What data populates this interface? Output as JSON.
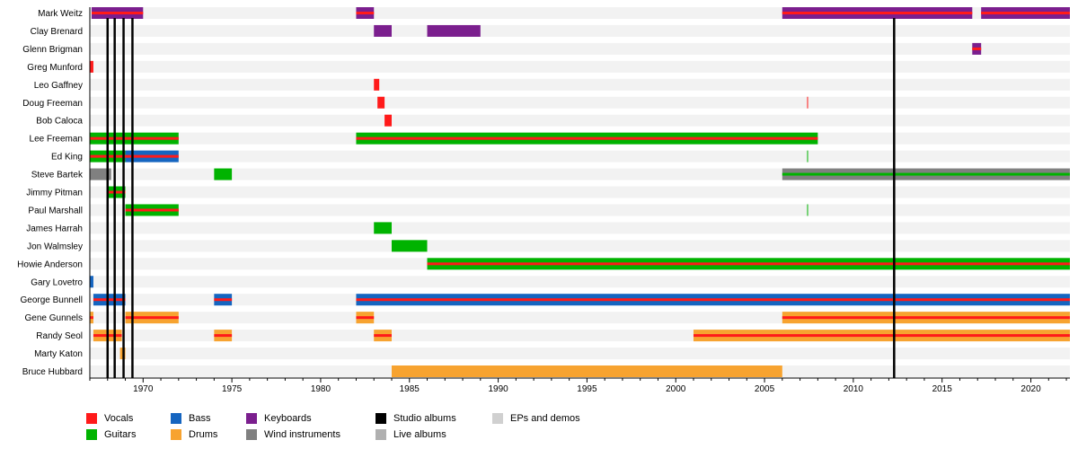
{
  "chart_data": {
    "type": "timeline",
    "title": "",
    "xlabel": "",
    "ylabel": "",
    "xlim": [
      1967.0,
      2022.2
    ],
    "x_ticks": [
      1970,
      1975,
      1980,
      1985,
      1990,
      1995,
      2000,
      2005,
      2010,
      2015,
      2020
    ],
    "colors": {
      "Vocals": "#ff1a1a",
      "Guitars": "#00b300",
      "Bass": "#1565c0",
      "Keyboards": "#7b1f8e",
      "Drums": "#f7a330",
      "Wind instruments": "#808080",
      "Studio albums": "#000000",
      "Live albums": "#b0b0b0",
      "EPs and demos": "#d0d0d0"
    },
    "legend": [
      {
        "label": "Vocals",
        "role": "Vocals"
      },
      {
        "label": "Guitars",
        "role": "Guitars"
      },
      {
        "label": "Bass",
        "role": "Bass"
      },
      {
        "label": "Drums",
        "role": "Drums"
      },
      {
        "label": "Keyboards",
        "role": "Keyboards"
      },
      {
        "label": "Wind instruments",
        "role": "Wind instruments"
      },
      {
        "label": "Studio albums",
        "role": "Studio albums"
      },
      {
        "label": "Live albums",
        "role": "Live albums"
      },
      {
        "label": "EPs and demos",
        "role": "EPs and demos"
      }
    ],
    "members": [
      {
        "name": "Mark Weitz",
        "periods": [
          {
            "start": 1967.1,
            "end": 1970.0,
            "roles": [
              "Keyboards",
              "Vocals"
            ]
          },
          {
            "start": 1982.0,
            "end": 1983.0,
            "roles": [
              "Keyboards",
              "Vocals"
            ]
          },
          {
            "start": 2006.0,
            "end": 2016.7,
            "roles": [
              "Keyboards",
              "Vocals"
            ]
          },
          {
            "start": 2017.2,
            "end": 2022.2,
            "roles": [
              "Keyboards",
              "Vocals"
            ]
          }
        ]
      },
      {
        "name": "Clay Brenard",
        "periods": [
          {
            "start": 1983.0,
            "end": 1984.0,
            "roles": [
              "Keyboards"
            ]
          },
          {
            "start": 1986.0,
            "end": 1989.0,
            "roles": [
              "Keyboards"
            ]
          }
        ]
      },
      {
        "name": "Glenn Brigman",
        "periods": [
          {
            "start": 2016.7,
            "end": 2017.2,
            "roles": [
              "Keyboards",
              "Vocals"
            ]
          }
        ]
      },
      {
        "name": "Greg Munford",
        "periods": [
          {
            "start": 1967.0,
            "end": 1967.2,
            "roles": [
              "Vocals"
            ]
          }
        ]
      },
      {
        "name": "Leo Gaffney",
        "periods": [
          {
            "start": 1983.0,
            "end": 1983.3,
            "roles": [
              "Vocals"
            ]
          }
        ]
      },
      {
        "name": "Doug Freeman",
        "periods": [
          {
            "start": 1983.2,
            "end": 1983.6,
            "roles": [
              "Vocals"
            ]
          },
          {
            "start": 2007.4,
            "end": 2007.45,
            "roles": [
              "Vocals"
            ]
          }
        ]
      },
      {
        "name": "Bob Caloca",
        "periods": [
          {
            "start": 1983.6,
            "end": 1984.0,
            "roles": [
              "Vocals"
            ]
          }
        ]
      },
      {
        "name": "Lee Freeman",
        "periods": [
          {
            "start": 1967.0,
            "end": 1972.0,
            "roles": [
              "Guitars",
              "Vocals"
            ]
          },
          {
            "start": 1982.0,
            "end": 2008.0,
            "roles": [
              "Guitars",
              "Vocals"
            ]
          }
        ]
      },
      {
        "name": "Ed King",
        "periods": [
          {
            "start": 1967.0,
            "end": 1969.0,
            "roles": [
              "Guitars",
              "Vocals"
            ]
          },
          {
            "start": 1969.0,
            "end": 1972.0,
            "roles": [
              "Bass",
              "Vocals"
            ]
          },
          {
            "start": 2007.4,
            "end": 2007.45,
            "roles": [
              "Guitars"
            ]
          }
        ]
      },
      {
        "name": "Steve Bartek",
        "periods": [
          {
            "start": 1967.0,
            "end": 1968.2,
            "roles": [
              "Wind instruments"
            ]
          },
          {
            "start": 1974.0,
            "end": 1975.0,
            "roles": [
              "Guitars"
            ]
          },
          {
            "start": 2006.0,
            "end": 2022.2,
            "roles": [
              "Wind instruments",
              "Guitars"
            ]
          }
        ]
      },
      {
        "name": "Jimmy Pitman",
        "periods": [
          {
            "start": 1968.0,
            "end": 1969.0,
            "roles": [
              "Guitars",
              "Vocals"
            ]
          }
        ]
      },
      {
        "name": "Paul Marshall",
        "periods": [
          {
            "start": 1969.0,
            "end": 1972.0,
            "roles": [
              "Guitars",
              "Vocals"
            ]
          },
          {
            "start": 2007.4,
            "end": 2007.45,
            "roles": [
              "Guitars"
            ]
          }
        ]
      },
      {
        "name": "James Harrah",
        "periods": [
          {
            "start": 1983.0,
            "end": 1984.0,
            "roles": [
              "Guitars"
            ]
          }
        ]
      },
      {
        "name": "Jon Walmsley",
        "periods": [
          {
            "start": 1984.0,
            "end": 1986.0,
            "roles": [
              "Guitars"
            ]
          }
        ]
      },
      {
        "name": "Howie Anderson",
        "periods": [
          {
            "start": 1986.0,
            "end": 2022.2,
            "roles": [
              "Guitars",
              "Vocals"
            ]
          }
        ]
      },
      {
        "name": "Gary Lovetro",
        "periods": [
          {
            "start": 1967.0,
            "end": 1967.2,
            "roles": [
              "Bass"
            ]
          }
        ]
      },
      {
        "name": "George Bunnell",
        "periods": [
          {
            "start": 1967.2,
            "end": 1969.0,
            "roles": [
              "Bass",
              "Vocals"
            ]
          },
          {
            "start": 1974.0,
            "end": 1975.0,
            "roles": [
              "Bass",
              "Vocals"
            ]
          },
          {
            "start": 1982.0,
            "end": 2022.2,
            "roles": [
              "Bass",
              "Vocals"
            ]
          }
        ]
      },
      {
        "name": "Gene Gunnels",
        "periods": [
          {
            "start": 1967.0,
            "end": 1967.2,
            "roles": [
              "Drums",
              "Vocals"
            ]
          },
          {
            "start": 1969.0,
            "end": 1972.0,
            "roles": [
              "Drums",
              "Vocals"
            ]
          },
          {
            "start": 1982.0,
            "end": 1983.0,
            "roles": [
              "Drums",
              "Vocals"
            ]
          },
          {
            "start": 2006.0,
            "end": 2022.2,
            "roles": [
              "Drums",
              "Vocals"
            ]
          }
        ]
      },
      {
        "name": "Randy Seol",
        "periods": [
          {
            "start": 1967.2,
            "end": 1968.8,
            "roles": [
              "Drums",
              "Vocals"
            ]
          },
          {
            "start": 1974.0,
            "end": 1975.0,
            "roles": [
              "Drums",
              "Vocals"
            ]
          },
          {
            "start": 1983.0,
            "end": 1984.0,
            "roles": [
              "Drums",
              "Vocals"
            ]
          },
          {
            "start": 2001.0,
            "end": 2022.2,
            "roles": [
              "Drums",
              "Vocals"
            ]
          }
        ]
      },
      {
        "name": "Marty Katon",
        "periods": [
          {
            "start": 1968.7,
            "end": 1969.0,
            "roles": [
              "Drums"
            ]
          }
        ]
      },
      {
        "name": "Bruce Hubbard",
        "periods": [
          {
            "start": 1984.0,
            "end": 2006.0,
            "roles": [
              "Drums"
            ]
          }
        ]
      }
    ],
    "album_lines": [
      {
        "year": 1968.0,
        "kind": "Studio albums"
      },
      {
        "year": 1968.4,
        "kind": "Studio albums"
      },
      {
        "year": 1968.9,
        "kind": "Studio albums"
      },
      {
        "year": 1969.4,
        "kind": "Studio albums"
      },
      {
        "year": 2012.3,
        "kind": "Studio albums"
      }
    ]
  }
}
